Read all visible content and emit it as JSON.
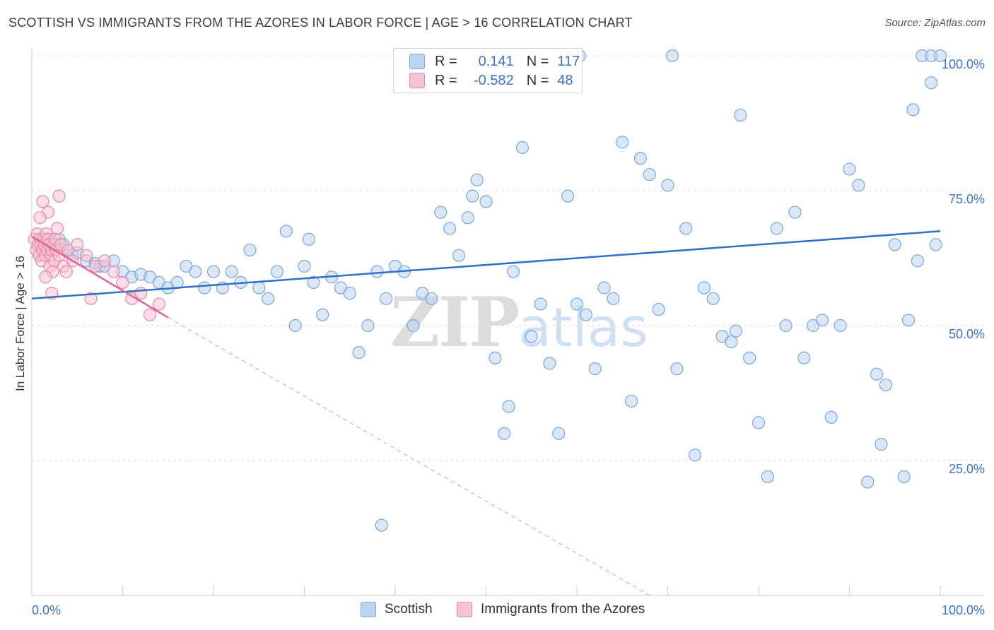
{
  "header": {
    "title": "SCOTTISH VS IMMIGRANTS FROM THE AZORES IN LABOR FORCE | AGE > 16 CORRELATION CHART",
    "source": "Source: ZipAtlas.com"
  },
  "watermark": {
    "zip": "ZIP",
    "atlas": "atlas"
  },
  "legend_top": {
    "r_label": "R =",
    "n_label": "N =",
    "series1": {
      "r": "0.141",
      "n": "117"
    },
    "series2": {
      "r": "-0.582",
      "n": "48"
    }
  },
  "colors": {
    "blue_fill": "#b9d3f1",
    "blue_stroke": "#7aa6dd",
    "blue_line": "#2f6fc9",
    "pink_fill": "#f7c3d4",
    "pink_stroke": "#ea86a7",
    "pink_line": "#e06496",
    "axis_text": "#3a74c9",
    "grid": "#dddddd"
  },
  "chart_data": {
    "type": "scatter",
    "title": "SCOTTISH VS IMMIGRANTS FROM THE AZORES IN LABOR FORCE | AGE > 16 CORRELATION CHART",
    "xlabel": "",
    "ylabel": "In Labor Force | Age > 16",
    "xlim": [
      0,
      100
    ],
    "ylim": [
      0,
      100
    ],
    "x_tick_labels": [
      "0.0%",
      "100.0%"
    ],
    "y_tick_labels": [
      "100.0%",
      "75.0%",
      "50.0%",
      "25.0%"
    ],
    "y_ticks": [
      100,
      75,
      50,
      25
    ],
    "legend_position": "bottom",
    "series": [
      {
        "name": "Scottish",
        "r": 0.141,
        "n": 117,
        "trend": {
          "x0": 0,
          "y0": 55.0,
          "x1": 100,
          "y1": 67.5
        },
        "points": [
          [
            0.8,
            63
          ],
          [
            1.2,
            65
          ],
          [
            1.5,
            66
          ],
          [
            2,
            65
          ],
          [
            2.5,
            64
          ],
          [
            3,
            66
          ],
          [
            3.5,
            65
          ],
          [
            4,
            64
          ],
          [
            1.8,
            64.5
          ],
          [
            2.2,
            65.5
          ],
          [
            4.5,
            63
          ],
          [
            5,
            63.5
          ],
          [
            6,
            62
          ],
          [
            7,
            61.5
          ],
          [
            7.5,
            61
          ],
          [
            8,
            61
          ],
          [
            9,
            62
          ],
          [
            10,
            60
          ],
          [
            11,
            59
          ],
          [
            12,
            59.5
          ],
          [
            13,
            59
          ],
          [
            14,
            58
          ],
          [
            15,
            57
          ],
          [
            16,
            58
          ],
          [
            17,
            61
          ],
          [
            18,
            60
          ],
          [
            19,
            57
          ],
          [
            20,
            60
          ],
          [
            21,
            57
          ],
          [
            22,
            60
          ],
          [
            23,
            58
          ],
          [
            24,
            64
          ],
          [
            25,
            57
          ],
          [
            26,
            55
          ],
          [
            27,
            60
          ],
          [
            28,
            67.5
          ],
          [
            29,
            50
          ],
          [
            30,
            61
          ],
          [
            31,
            58
          ],
          [
            32,
            52
          ],
          [
            33,
            59
          ],
          [
            34,
            57
          ],
          [
            35,
            56
          ],
          [
            36,
            45
          ],
          [
            37,
            50
          ],
          [
            38,
            60
          ],
          [
            39,
            55
          ],
          [
            40,
            61
          ],
          [
            41,
            60
          ],
          [
            42,
            50
          ],
          [
            43,
            56
          ],
          [
            44,
            55
          ],
          [
            45,
            71
          ],
          [
            46,
            68
          ],
          [
            47,
            63
          ],
          [
            48,
            70
          ],
          [
            49,
            77
          ],
          [
            50,
            73
          ],
          [
            51,
            44
          ],
          [
            52,
            30
          ],
          [
            53,
            60
          ],
          [
            54,
            83
          ],
          [
            55,
            48
          ],
          [
            56,
            54
          ],
          [
            57,
            43
          ],
          [
            58,
            30
          ],
          [
            59,
            74
          ],
          [
            60,
            54
          ],
          [
            61,
            52
          ],
          [
            62,
            42
          ],
          [
            63,
            57
          ],
          [
            64,
            55
          ],
          [
            65,
            84
          ],
          [
            66,
            36
          ],
          [
            67,
            81
          ],
          [
            68,
            78
          ],
          [
            69,
            53
          ],
          [
            70,
            76
          ],
          [
            71,
            42
          ],
          [
            72,
            68
          ],
          [
            73,
            26
          ],
          [
            74,
            57
          ],
          [
            75,
            55
          ],
          [
            76,
            48
          ],
          [
            77,
            47
          ],
          [
            78,
            89
          ],
          [
            79,
            44
          ],
          [
            80,
            32
          ],
          [
            81,
            22
          ],
          [
            82,
            68
          ],
          [
            83,
            50
          ],
          [
            84,
            71
          ],
          [
            85,
            44
          ],
          [
            86,
            50
          ],
          [
            87,
            51
          ],
          [
            88,
            33
          ],
          [
            89,
            50
          ],
          [
            90,
            79
          ],
          [
            91,
            76
          ],
          [
            92,
            21
          ],
          [
            93,
            41
          ],
          [
            94,
            39
          ],
          [
            95,
            65
          ],
          [
            96,
            22
          ],
          [
            97,
            90
          ],
          [
            98,
            100
          ],
          [
            99,
            100
          ],
          [
            100,
            100
          ],
          [
            38.5,
            13
          ],
          [
            60.3,
            100
          ],
          [
            52.5,
            35
          ],
          [
            93.5,
            28
          ],
          [
            96.5,
            51
          ],
          [
            97.5,
            62
          ],
          [
            99.5,
            65
          ],
          [
            99,
            95
          ],
          [
            70.5,
            100
          ],
          [
            77.5,
            49
          ],
          [
            30.5,
            66
          ],
          [
            48.5,
            74
          ]
        ]
      },
      {
        "name": "Immigrants from the Azores",
        "r": -0.582,
        "n": 48,
        "trend": {
          "x0": 0,
          "y0": 66.5,
          "x1": 15,
          "y1": 51.5,
          "x_dash_end": 68,
          "y_dash_end": 0
        },
        "points": [
          [
            0.3,
            66
          ],
          [
            0.5,
            64
          ],
          [
            0.6,
            67
          ],
          [
            0.7,
            65
          ],
          [
            0.8,
            63
          ],
          [
            0.9,
            66
          ],
          [
            1,
            65
          ],
          [
            1.1,
            62
          ],
          [
            1.2,
            64
          ],
          [
            1.3,
            66
          ],
          [
            1.4,
            65
          ],
          [
            1.5,
            63
          ],
          [
            1.6,
            67
          ],
          [
            1.7,
            64
          ],
          [
            1.8,
            66
          ],
          [
            1.9,
            65
          ],
          [
            2,
            61
          ],
          [
            2.1,
            63
          ],
          [
            2.2,
            64
          ],
          [
            2.3,
            60
          ],
          [
            2.4,
            65
          ],
          [
            2.5,
            62
          ],
          [
            2.6,
            66
          ],
          [
            2.7,
            64
          ],
          [
            2.8,
            68
          ],
          [
            3,
            63
          ],
          [
            3.2,
            65
          ],
          [
            3.5,
            61
          ],
          [
            4,
            64
          ],
          [
            4.5,
            62
          ],
          [
            5,
            65
          ],
          [
            6,
            63
          ],
          [
            7,
            61
          ],
          [
            8,
            62
          ],
          [
            9,
            60
          ],
          [
            10,
            58
          ],
          [
            11,
            55
          ],
          [
            12,
            56
          ],
          [
            13,
            52
          ],
          [
            14,
            54
          ],
          [
            1.2,
            73
          ],
          [
            3,
            74
          ],
          [
            1.8,
            71
          ],
          [
            0.9,
            70
          ],
          [
            2.2,
            56
          ],
          [
            1.5,
            59
          ],
          [
            6.5,
            55
          ],
          [
            3.8,
            60
          ]
        ]
      }
    ]
  },
  "legend_bottom": {
    "items": [
      "Scottish",
      "Immigrants from the Azores"
    ]
  }
}
